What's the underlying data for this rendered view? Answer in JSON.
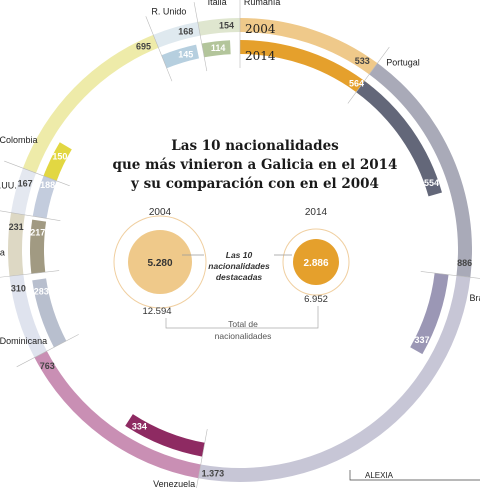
{
  "chart_data": {
    "type": "radial-bar",
    "title_lines": [
      "Las 10 nacionalidades",
      "que más vinieron a Galicia en el 2014",
      "y su comparación con en el 2004"
    ],
    "legend": {
      "year_a": "2004",
      "year_b": "2014"
    },
    "categories": [
      "Rumanía",
      "Portugal",
      "Brasil",
      "Venezuela",
      "Rep. Dominicana",
      "Cuba",
      "EE.UU.",
      "Colombia",
      "R. Unido",
      "Italia"
    ],
    "series": [
      {
        "name": "2004",
        "values": [
          533,
          886,
          1373,
          763,
          310,
          231,
          167,
          695,
          168,
          154
        ]
      },
      {
        "name": "2014",
        "values": [
          564,
          554,
          337,
          334,
          283,
          217,
          188,
          150,
          145,
          114
        ]
      }
    ],
    "value_labels": {
      "2004": [
        "533",
        "886",
        "1.373",
        "763",
        "310",
        "231",
        "167",
        "695",
        "168",
        "154"
      ],
      "2014": [
        "564",
        "554",
        "337",
        "334",
        "283",
        "217",
        "188",
        "150",
        "145",
        "114"
      ]
    },
    "colors": {
      "2004": [
        "#efc98a",
        "#a9aab8",
        "#c7c6d6",
        "#c98fb4",
        "#dfe3ee",
        "#ddd8c4",
        "#e4e8f0",
        "#eeeba9",
        "#dfe9ef",
        "#dfe6cf"
      ],
      "2014": [
        "#e5a02c",
        "#636779",
        "#9b97b5",
        "#8e2a62",
        "#b8bfce",
        "#a19a82",
        "#c3ccdd",
        "#e2d742",
        "#b6cfdf",
        "#b3c59b"
      ]
    },
    "center": {
      "left_year": "2004",
      "left_value": "5.280",
      "right_year": "2014",
      "right_value": "2.886",
      "middle_label_1": "Las 10",
      "middle_label_2": "nacionalidades",
      "middle_label_3": "destacadas",
      "left_total": "12.594",
      "right_total": "6.952",
      "total_label_1": "Total de",
      "total_label_2": "nacionalidades"
    }
  },
  "credit": "ALEXIA"
}
